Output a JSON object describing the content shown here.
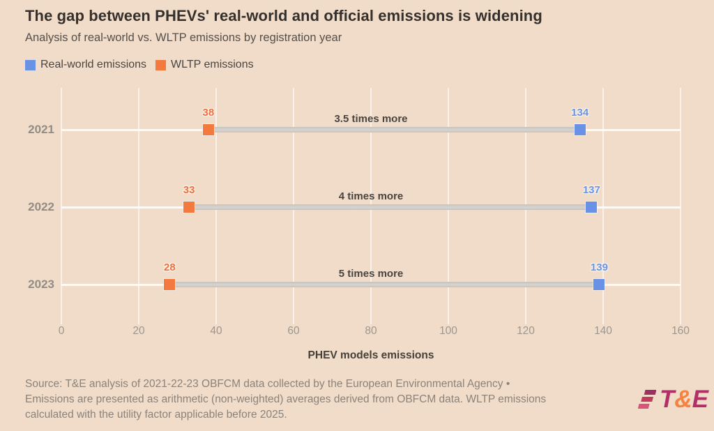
{
  "header": {
    "title": "The gap between PHEVs' real-world and official emissions is widening",
    "subtitle": "Analysis of real-world vs. WLTP emissions by registration year"
  },
  "chart_data": {
    "type": "scatter",
    "variant": "dumbbell",
    "categories": [
      "2021",
      "2022",
      "2023"
    ],
    "series": [
      {
        "name": "Real-world emissions",
        "color": "#6991e6",
        "values": [
          134,
          137,
          139
        ]
      },
      {
        "name": "WLTP emissions",
        "color": "#f4793f",
        "values": [
          38,
          33,
          28
        ]
      }
    ],
    "annotations": [
      "3.5 times more",
      "4 times more",
      "5 times more"
    ],
    "xlabel": "PHEV models emissions",
    "xlim": [
      0,
      160
    ],
    "xticks": [
      0,
      20,
      40,
      60,
      80,
      100,
      120,
      140,
      160
    ],
    "grid": "vertical white gridlines on peach background",
    "legend_position": "top-left"
  },
  "colors": {
    "background": "#f1dcc9",
    "real_world_blue": "#6991e6",
    "wltp_orange": "#f4793f",
    "connector_gray": "#cac7c3",
    "gridline_white": "#ffffff",
    "logo_magenta": "#b23067",
    "logo_orange": "#f5823e"
  },
  "footer": {
    "source_lines": [
      "Source: T&E analysis of 2021-22-23 OBFCM data collected by the European Environmental Agency •",
      "Emissions are presented as arithmetic (non-weighted) averages derived from OBFCM data. WLTP emissions",
      "calculated with the utility factor applicable before 2025."
    ],
    "logo": {
      "t": "T",
      "amp": "&",
      "e": "E"
    }
  }
}
